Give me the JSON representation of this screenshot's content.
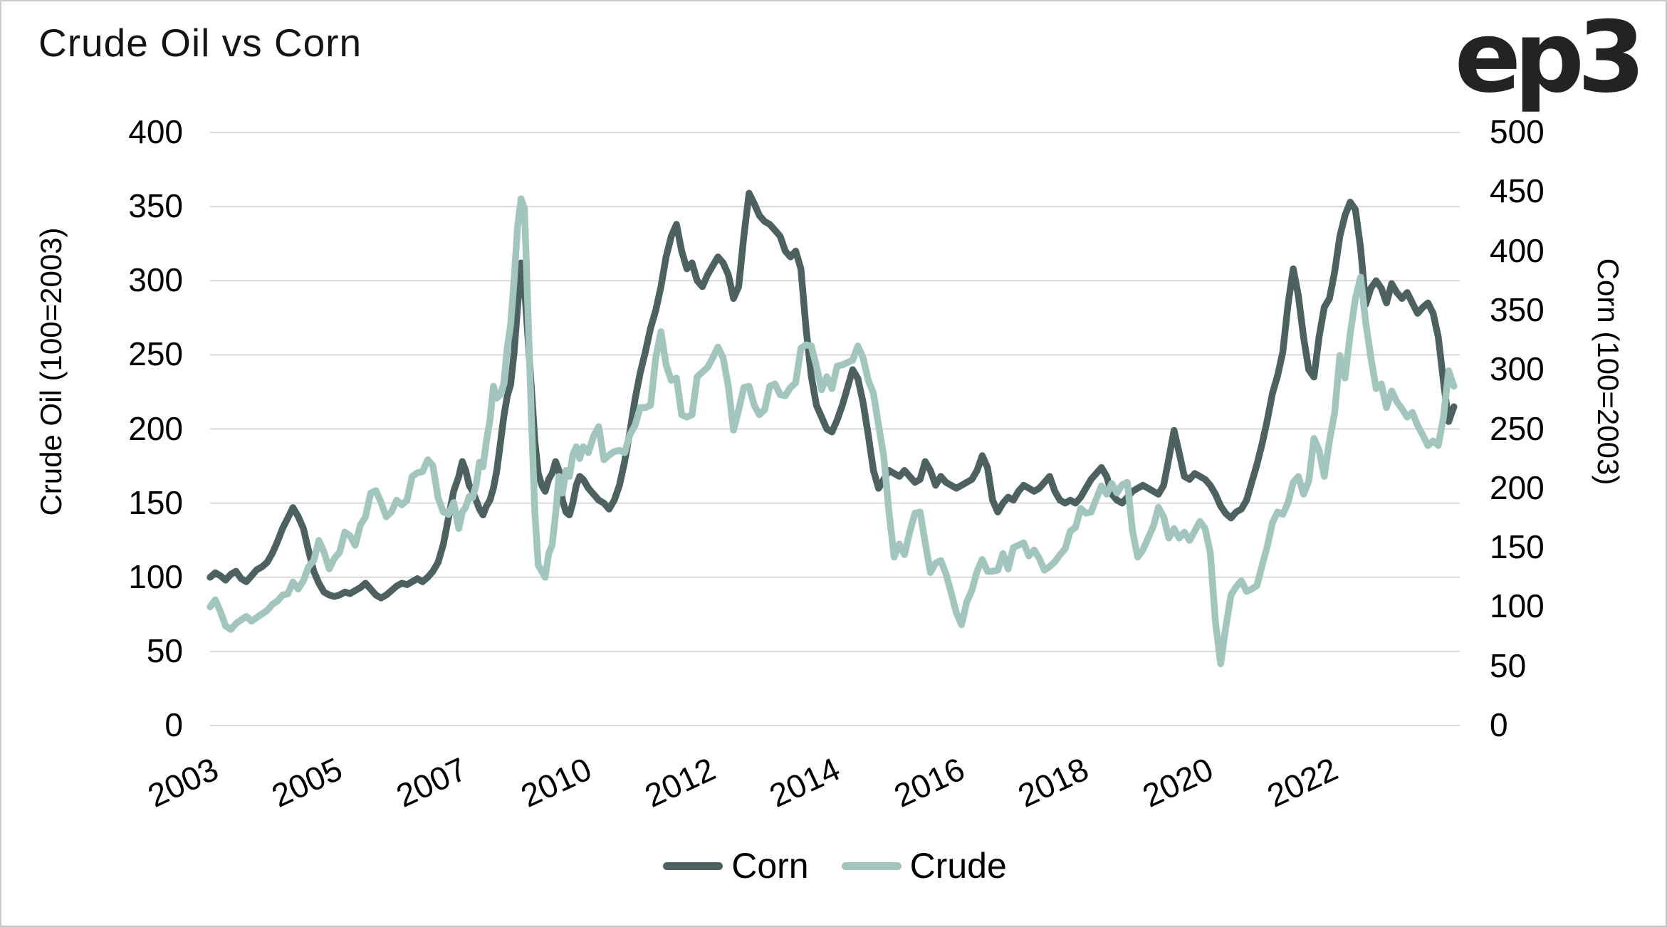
{
  "title": "Crude Oil vs Corn",
  "logo_text": "ep3",
  "colors": {
    "corn_line": "#4d6160",
    "crude_line": "#a2c5be",
    "gridline": "#d9d9d9",
    "text": "#000000",
    "page_border": "#c9c9c9"
  },
  "chart_data": {
    "type": "line",
    "title": "Crude Oil vs Corn",
    "grid": "horizontal",
    "left_axis": {
      "title": "Crude Oil (100=2003)",
      "min": 0,
      "max": 400,
      "tick_step": 50,
      "tick_labels": [
        "400",
        "350",
        "300",
        "250",
        "200",
        "150",
        "100",
        "50",
        "0"
      ]
    },
    "right_axis": {
      "title": "Corn (100=2003)",
      "min": 0,
      "max": 500,
      "tick_step": 50,
      "tick_labels": [
        "500",
        "450",
        "400",
        "350",
        "300",
        "250",
        "200",
        "150",
        "100",
        "50",
        "0"
      ]
    },
    "x_axis": {
      "tick_labels": [
        "2003",
        "2005",
        "2007",
        "2010",
        "2012",
        "2014",
        "2016",
        "2018",
        "2020",
        "2022"
      ],
      "tick_years": [
        2003,
        2005,
        2007,
        2010,
        2012,
        2014,
        2016,
        2018,
        2020,
        2022
      ]
    },
    "legend": {
      "position": "bottom",
      "entries": [
        {
          "label": "Corn",
          "color": "#4d6160"
        },
        {
          "label": "Crude",
          "color": "#a2c5be"
        }
      ]
    },
    "series": [
      {
        "name": "Corn",
        "color": "#4d6160",
        "scale_max": 400,
        "start_year": 2003,
        "points_per_year": 12,
        "values": [
          100,
          103,
          101,
          98,
          102,
          104,
          99,
          97,
          101,
          105,
          107,
          110,
          116,
          124,
          133,
          140,
          147,
          141,
          133,
          118,
          104,
          96,
          90,
          88,
          87,
          88,
          90,
          89,
          91,
          93,
          96,
          92,
          88,
          86,
          88,
          91,
          94,
          96,
          95,
          97,
          99,
          97,
          100,
          104,
          110,
          122,
          140,
          158,
          168,
          178,
          172,
          162,
          158,
          152,
          146,
          142,
          148,
          152,
          160,
          172,
          190,
          208,
          222,
          230,
          252,
          282,
          312,
          296,
          262,
          228,
          192,
          170,
          162,
          158,
          166,
          170,
          178,
          172,
          152,
          144,
          142,
          150,
          162,
          168,
          166,
          160,
          156,
          152,
          150,
          146,
          152,
          162,
          178,
          198,
          220,
          238,
          252,
          268,
          280,
          296,
          316,
          330,
          338,
          320,
          308,
          312,
          300,
          296,
          304,
          310,
          316,
          312,
          304,
          288,
          296,
          330,
          359,
          352,
          344,
          340,
          338,
          334,
          330,
          320,
          316,
          320,
          308,
          268,
          236,
          216,
          208,
          200,
          198,
          206,
          216,
          228,
          240,
          234,
          218,
          196,
          172,
          160,
          166,
          172,
          170,
          168,
          172,
          168,
          164,
          166,
          178,
          172,
          162,
          168,
          164,
          162,
          160,
          162,
          164,
          166,
          172,
          182,
          174,
          152,
          144,
          150,
          154,
          152,
          158,
          162,
          160,
          158,
          160,
          164,
          168,
          158,
          152,
          150,
          152,
          150,
          154,
          160,
          166,
          170,
          174,
          168,
          156,
          152,
          150,
          154,
          158,
          160,
          162,
          160,
          158,
          156,
          162,
          180,
          199,
          184,
          168,
          166,
          170,
          168,
          166,
          162,
          156,
          148,
          143,
          140,
          144,
          146,
          152,
          164,
          176,
          190,
          206,
          224,
          236,
          252,
          284,
          308,
          290,
          262,
          240,
          235,
          262,
          282,
          288,
          306,
          330,
          344,
          353,
          348,
          322,
          284,
          295,
          300,
          295,
          285,
          298,
          292,
          288,
          292,
          285,
          278,
          282,
          285,
          278,
          262,
          232,
          205,
          215
        ]
      },
      {
        "name": "Crude",
        "color": "#a2c5be",
        "scale_max": 500,
        "start_year": 2003,
        "points_per_year": 12,
        "values": [
          100,
          106,
          96,
          84,
          81,
          86,
          89,
          92,
          88,
          91,
          94,
          97,
          102,
          105,
          110,
          111,
          121,
          115,
          122,
          134,
          139,
          156,
          146,
          132,
          141,
          146,
          163,
          160,
          152,
          169,
          176,
          196,
          198,
          188,
          176,
          180,
          190,
          186,
          190,
          210,
          213,
          214,
          224,
          219,
          192,
          180,
          178,
          188,
          166,
          180,
          184,
          193,
          192,
          203,
          222,
          218,
          240,
          257,
          286,
          276,
          279,
          288,
          318,
          338,
          376,
          420,
          444,
          436,
          350,
          260,
          180,
          135,
          130,
          125,
          145,
          152,
          178,
          210,
          196,
          215,
          210,
          228,
          235,
          225,
          235,
          230,
          244,
          252,
          224,
          228,
          231,
          232,
          230,
          245,
          253,
          268,
          268,
          270,
          310,
          332,
          304,
          291,
          293,
          262,
          260,
          262,
          294,
          298,
          302,
          310,
          319,
          310,
          286,
          249,
          266,
          285,
          286,
          270,
          262,
          266,
          286,
          288,
          279,
          278,
          285,
          289,
          318,
          321,
          320,
          303,
          283,
          294,
          284,
          303,
          304,
          306,
          308,
          320,
          310,
          291,
          280,
          253,
          227,
          180,
          142,
          153,
          144,
          163,
          179,
          180,
          154,
          129,
          137,
          139,
          128,
          112,
          95,
          85,
          104,
          114,
          130,
          140,
          130,
          130,
          131,
          145,
          132,
          150,
          152,
          154,
          143,
          148,
          141,
          131,
          134,
          138,
          144,
          149,
          164,
          167,
          183,
          179,
          180,
          191,
          202,
          195,
          204,
          196,
          203,
          205,
          164,
          142,
          148,
          158,
          168,
          184,
          176,
          158,
          166,
          158,
          163,
          156,
          164,
          172,
          166,
          146,
          87,
          52,
          83,
          110,
          117,
          122,
          113,
          115,
          118,
          135,
          151,
          171,
          180,
          178,
          188,
          205,
          210,
          195,
          206,
          242,
          232,
          210,
          240,
          264,
          312,
          293,
          330,
          360,
          378,
          340,
          310,
          284,
          288,
          268,
          282,
          273,
          267,
          260,
          264,
          253,
          245,
          236,
          240,
          236,
          260,
          299,
          286
        ]
      }
    ]
  }
}
